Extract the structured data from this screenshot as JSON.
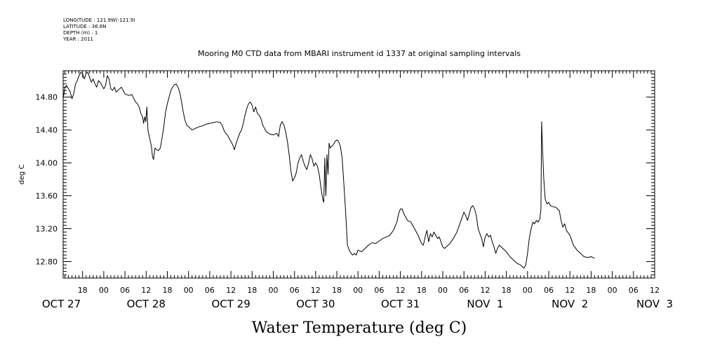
{
  "header": {
    "longitude": "LONGITUDE : 121.9W(-121.9)",
    "latitude": "LATITUDE : 36.8N",
    "depth": "DEPTH (m) : 1",
    "year": "YEAR : 2011"
  },
  "chart_data": {
    "type": "line",
    "title": "Mooring M0 CTD data from MBARI instrument id 1337 at original sampling intervals",
    "xlabel": "Water Temperature (deg C)",
    "ylabel": "deg C",
    "x_units": "hours since 2011-10-27 00:00",
    "xlim": [
      12.5,
      180
    ],
    "ylim": [
      12.6,
      15.12
    ],
    "yticks": [
      12.8,
      13.2,
      13.6,
      14.0,
      14.4,
      14.8
    ],
    "ytick_labels": [
      "12.80",
      "13.20",
      "13.60",
      "14.00",
      "14.40",
      "14.80"
    ],
    "hour_labels": [
      {
        "x": 18,
        "label": "18"
      },
      {
        "x": 24,
        "label": "00"
      },
      {
        "x": 30,
        "label": "06"
      },
      {
        "x": 36,
        "label": "12"
      },
      {
        "x": 42,
        "label": "18"
      },
      {
        "x": 48,
        "label": "00"
      },
      {
        "x": 54,
        "label": "06"
      },
      {
        "x": 60,
        "label": "12"
      },
      {
        "x": 66,
        "label": "18"
      },
      {
        "x": 72,
        "label": "00"
      },
      {
        "x": 78,
        "label": "06"
      },
      {
        "x": 84,
        "label": "12"
      },
      {
        "x": 90,
        "label": "18"
      },
      {
        "x": 96,
        "label": "00"
      },
      {
        "x": 102,
        "label": "06"
      },
      {
        "x": 108,
        "label": "12"
      },
      {
        "x": 114,
        "label": "18"
      },
      {
        "x": 120,
        "label": "00"
      },
      {
        "x": 126,
        "label": "06"
      },
      {
        "x": 132,
        "label": "12"
      },
      {
        "x": 138,
        "label": "18"
      },
      {
        "x": 144,
        "label": "00"
      },
      {
        "x": 150,
        "label": "06"
      },
      {
        "x": 156,
        "label": "12"
      },
      {
        "x": 162,
        "label": "18"
      },
      {
        "x": 168,
        "label": "00"
      },
      {
        "x": 174,
        "label": "06"
      },
      {
        "x": 180,
        "label": "12"
      }
    ],
    "day_labels": [
      {
        "x": 12,
        "label": "OCT 27"
      },
      {
        "x": 36,
        "label": "OCT 28"
      },
      {
        "x": 60,
        "label": "OCT 29"
      },
      {
        "x": 84,
        "label": "OCT 30"
      },
      {
        "x": 108,
        "label": "OCT 31"
      },
      {
        "x": 132,
        "label": "NOV  1"
      },
      {
        "x": 156,
        "label": "NOV  2"
      },
      {
        "x": 180,
        "label": "NOV  3"
      }
    ],
    "series": [
      {
        "color": "#000000",
        "points": [
          [
            12.5,
            14.78
          ],
          [
            13.0,
            14.92
          ],
          [
            13.5,
            14.94
          ],
          [
            14.0,
            14.9
          ],
          [
            14.5,
            14.86
          ],
          [
            15.0,
            14.78
          ],
          [
            15.5,
            14.84
          ],
          [
            16.0,
            14.96
          ],
          [
            16.5,
            15.0
          ],
          [
            17.0,
            15.06
          ],
          [
            17.5,
            15.1
          ],
          [
            18.0,
            15.08
          ],
          [
            18.5,
            15.02
          ],
          [
            19.0,
            15.09
          ],
          [
            19.5,
            15.1
          ],
          [
            20.0,
            15.04
          ],
          [
            20.5,
            14.98
          ],
          [
            21.0,
            15.02
          ],
          [
            21.5,
            14.96
          ],
          [
            22.0,
            14.92
          ],
          [
            22.5,
            15.0
          ],
          [
            23.0,
            14.98
          ],
          [
            23.5,
            14.94
          ],
          [
            24.0,
            14.9
          ],
          [
            24.5,
            14.94
          ],
          [
            25.0,
            15.06
          ],
          [
            25.5,
            15.02
          ],
          [
            26.0,
            14.9
          ],
          [
            26.5,
            14.88
          ],
          [
            27.0,
            14.92
          ],
          [
            27.5,
            14.86
          ],
          [
            28.0,
            14.88
          ],
          [
            28.5,
            14.9
          ],
          [
            29.0,
            14.92
          ],
          [
            29.5,
            14.88
          ],
          [
            30.0,
            14.84
          ],
          [
            31.0,
            14.82
          ],
          [
            32.0,
            14.83
          ],
          [
            32.5,
            14.78
          ],
          [
            33.0,
            14.74
          ],
          [
            33.5,
            14.72
          ],
          [
            34.0,
            14.68
          ],
          [
            34.5,
            14.6
          ],
          [
            35.0,
            14.56
          ],
          [
            35.3,
            14.48
          ],
          [
            35.6,
            14.56
          ],
          [
            35.9,
            14.5
          ],
          [
            36.2,
            14.68
          ],
          [
            36.5,
            14.4
          ],
          [
            37.0,
            14.3
          ],
          [
            37.5,
            14.2
          ],
          [
            37.8,
            14.08
          ],
          [
            38.1,
            14.04
          ],
          [
            38.5,
            14.18
          ],
          [
            39.0,
            14.16
          ],
          [
            39.5,
            14.15
          ],
          [
            40.0,
            14.18
          ],
          [
            40.5,
            14.3
          ],
          [
            41.0,
            14.44
          ],
          [
            41.5,
            14.62
          ],
          [
            42.0,
            14.72
          ],
          [
            42.5,
            14.8
          ],
          [
            43.0,
            14.88
          ],
          [
            43.5,
            14.92
          ],
          [
            44.0,
            14.95
          ],
          [
            44.5,
            14.96
          ],
          [
            45.0,
            14.92
          ],
          [
            45.5,
            14.86
          ],
          [
            46.0,
            14.75
          ],
          [
            46.5,
            14.62
          ],
          [
            47.0,
            14.52
          ],
          [
            47.5,
            14.46
          ],
          [
            48.0,
            14.44
          ],
          [
            48.5,
            14.42
          ],
          [
            49.0,
            14.4
          ],
          [
            50.0,
            14.42
          ],
          [
            51.0,
            14.44
          ],
          [
            52.0,
            14.45
          ],
          [
            53.0,
            14.47
          ],
          [
            54.0,
            14.48
          ],
          [
            55.0,
            14.49
          ],
          [
            56.0,
            14.5
          ],
          [
            57.0,
            14.49
          ],
          [
            57.5,
            14.46
          ],
          [
            58.0,
            14.4
          ],
          [
            58.5,
            14.36
          ],
          [
            59.0,
            14.34
          ],
          [
            59.5,
            14.3
          ],
          [
            60.0,
            14.26
          ],
          [
            60.5,
            14.22
          ],
          [
            61.0,
            14.16
          ],
          [
            61.5,
            14.24
          ],
          [
            62.0,
            14.3
          ],
          [
            62.5,
            14.36
          ],
          [
            63.0,
            14.4
          ],
          [
            63.5,
            14.48
          ],
          [
            64.0,
            14.58
          ],
          [
            64.5,
            14.66
          ],
          [
            65.0,
            14.72
          ],
          [
            65.5,
            14.74
          ],
          [
            66.0,
            14.7
          ],
          [
            66.5,
            14.62
          ],
          [
            67.0,
            14.68
          ],
          [
            67.5,
            14.6
          ],
          [
            68.0,
            14.58
          ],
          [
            68.5,
            14.54
          ],
          [
            69.0,
            14.46
          ],
          [
            69.5,
            14.42
          ],
          [
            70.0,
            14.38
          ],
          [
            71.0,
            14.35
          ],
          [
            72.0,
            14.34
          ],
          [
            73.0,
            14.36
          ],
          [
            73.5,
            14.32
          ],
          [
            74.0,
            14.46
          ],
          [
            74.5,
            14.5
          ],
          [
            75.0,
            14.46
          ],
          [
            75.5,
            14.38
          ],
          [
            76.0,
            14.26
          ],
          [
            76.5,
            14.1
          ],
          [
            77.0,
            13.9
          ],
          [
            77.5,
            13.78
          ],
          [
            78.0,
            13.82
          ],
          [
            78.5,
            13.88
          ],
          [
            79.0,
            14.0
          ],
          [
            79.5,
            14.06
          ],
          [
            80.0,
            14.1
          ],
          [
            80.5,
            14.02
          ],
          [
            81.0,
            13.96
          ],
          [
            81.5,
            13.92
          ],
          [
            82.0,
            14.0
          ],
          [
            82.5,
            14.1
          ],
          [
            83.0,
            14.05
          ],
          [
            83.5,
            13.96
          ],
          [
            84.0,
            14.0
          ],
          [
            84.5,
            13.96
          ],
          [
            85.0,
            13.86
          ],
          [
            85.5,
            13.7
          ],
          [
            86.0,
            13.56
          ],
          [
            86.3,
            13.52
          ],
          [
            86.6,
            14.06
          ],
          [
            86.9,
            13.6
          ],
          [
            87.2,
            14.1
          ],
          [
            87.5,
            13.86
          ],
          [
            87.8,
            14.24
          ],
          [
            88.1,
            14.18
          ],
          [
            88.5,
            14.2
          ],
          [
            89.0,
            14.22
          ],
          [
            89.5,
            14.26
          ],
          [
            90.0,
            14.28
          ],
          [
            90.5,
            14.26
          ],
          [
            91.0,
            14.2
          ],
          [
            91.5,
            14.06
          ],
          [
            92.0,
            13.74
          ],
          [
            92.5,
            13.4
          ],
          [
            93.0,
            13.0
          ],
          [
            93.5,
            12.94
          ],
          [
            94.0,
            12.9
          ],
          [
            94.5,
            12.88
          ],
          [
            95.0,
            12.9
          ],
          [
            95.5,
            12.88
          ],
          [
            96.0,
            12.94
          ],
          [
            97.0,
            12.92
          ],
          [
            98.0,
            12.96
          ],
          [
            99.0,
            13.0
          ],
          [
            100.0,
            13.03
          ],
          [
            101.0,
            13.02
          ],
          [
            102.0,
            13.05
          ],
          [
            103.0,
            13.08
          ],
          [
            104.0,
            13.1
          ],
          [
            105.0,
            13.12
          ],
          [
            106.0,
            13.18
          ],
          [
            107.0,
            13.28
          ],
          [
            107.5,
            13.38
          ],
          [
            108.0,
            13.44
          ],
          [
            108.5,
            13.44
          ],
          [
            109.0,
            13.38
          ],
          [
            109.5,
            13.34
          ],
          [
            110.0,
            13.3
          ],
          [
            111.0,
            13.28
          ],
          [
            112.0,
            13.2
          ],
          [
            113.0,
            13.12
          ],
          [
            114.0,
            13.02
          ],
          [
            114.5,
            13.0
          ],
          [
            115.0,
            13.1
          ],
          [
            115.5,
            13.18
          ],
          [
            116.0,
            13.04
          ],
          [
            116.5,
            13.14
          ],
          [
            117.0,
            13.1
          ],
          [
            117.5,
            13.16
          ],
          [
            118.0,
            13.12
          ],
          [
            118.5,
            13.08
          ],
          [
            119.0,
            13.1
          ],
          [
            119.5,
            13.04
          ],
          [
            120.0,
            12.98
          ],
          [
            120.5,
            12.96
          ],
          [
            121.0,
            12.98
          ],
          [
            122.0,
            13.02
          ],
          [
            123.0,
            13.08
          ],
          [
            124.0,
            13.16
          ],
          [
            125.0,
            13.28
          ],
          [
            125.5,
            13.34
          ],
          [
            126.0,
            13.4
          ],
          [
            126.5,
            13.36
          ],
          [
            127.0,
            13.3
          ],
          [
            127.5,
            13.38
          ],
          [
            128.0,
            13.46
          ],
          [
            128.5,
            13.48
          ],
          [
            129.0,
            13.44
          ],
          [
            129.5,
            13.36
          ],
          [
            130.0,
            13.2
          ],
          [
            130.5,
            13.14
          ],
          [
            131.0,
            13.08
          ],
          [
            131.5,
            12.98
          ],
          [
            132.0,
            13.1
          ],
          [
            132.5,
            13.14
          ],
          [
            133.0,
            13.1
          ],
          [
            133.5,
            13.12
          ],
          [
            134.0,
            13.04
          ],
          [
            134.5,
            12.98
          ],
          [
            135.0,
            12.9
          ],
          [
            135.5,
            12.96
          ],
          [
            136.0,
            13.0
          ],
          [
            137.0,
            12.96
          ],
          [
            138.0,
            12.92
          ],
          [
            139.0,
            12.86
          ],
          [
            140.0,
            12.82
          ],
          [
            141.0,
            12.78
          ],
          [
            142.0,
            12.76
          ],
          [
            142.5,
            12.74
          ],
          [
            143.0,
            12.72
          ],
          [
            143.5,
            12.76
          ],
          [
            144.0,
            12.9
          ],
          [
            144.5,
            13.08
          ],
          [
            145.0,
            13.2
          ],
          [
            145.5,
            13.28
          ],
          [
            146.0,
            13.26
          ],
          [
            146.5,
            13.3
          ],
          [
            147.0,
            13.28
          ],
          [
            147.5,
            13.32
          ],
          [
            147.8,
            13.44
          ],
          [
            148.0,
            14.5
          ],
          [
            148.3,
            14.1
          ],
          [
            148.6,
            13.8
          ],
          [
            149.0,
            13.56
          ],
          [
            149.5,
            13.5
          ],
          [
            150.0,
            13.52
          ],
          [
            150.5,
            13.48
          ],
          [
            151.0,
            13.47
          ],
          [
            152.0,
            13.46
          ],
          [
            153.0,
            13.42
          ],
          [
            153.5,
            13.3
          ],
          [
            154.0,
            13.22
          ],
          [
            154.5,
            13.26
          ],
          [
            155.0,
            13.18
          ],
          [
            156.0,
            13.12
          ],
          [
            157.0,
            13.0
          ],
          [
            158.0,
            12.94
          ],
          [
            159.0,
            12.9
          ],
          [
            160.0,
            12.86
          ],
          [
            161.0,
            12.85
          ],
          [
            162.0,
            12.86
          ],
          [
            163.0,
            12.84
          ]
        ]
      }
    ]
  }
}
